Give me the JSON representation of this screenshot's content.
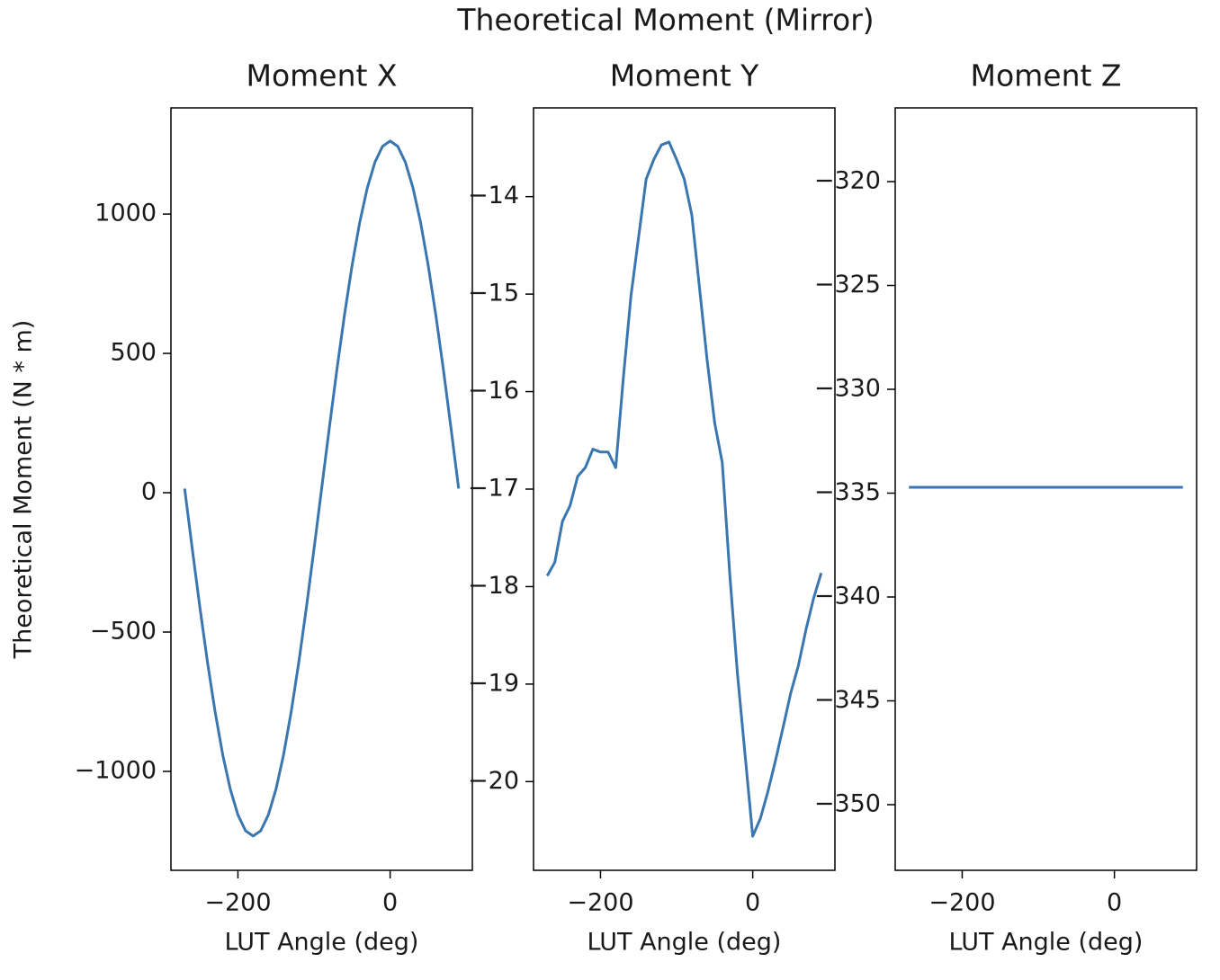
{
  "title": "Theoretical Moment (Mirror)",
  "chart_data": [
    {
      "type": "line",
      "title": "Moment X",
      "xlabel": "LUT Angle (deg)",
      "ylabel": "Theoretical Moment (N * m)",
      "xlim": [
        -288,
        108
      ],
      "ylim": [
        -1355,
        1381
      ],
      "xticks": [
        {
          "value": -200,
          "label": "−200"
        },
        0
      ],
      "yticks": [
        {
          "value": -1000,
          "label": "−1000"
        },
        {
          "value": -500,
          "label": "−500"
        },
        0,
        500,
        1000
      ],
      "x": [
        -270,
        -260,
        -250,
        -240,
        -230,
        -220,
        -210,
        -200,
        -190,
        -180,
        -170,
        -160,
        -150,
        -140,
        -130,
        -120,
        -110,
        -100,
        -90,
        -80,
        -70,
        -60,
        -50,
        -40,
        -30,
        -20,
        -10,
        0,
        10,
        20,
        30,
        40,
        50,
        60,
        70,
        80,
        90
      ],
      "series": [
        {
          "color": "#3a76af",
          "values": [
            15,
            -201,
            -411,
            -608,
            -786,
            -940,
            -1064,
            -1156,
            -1213,
            -1232,
            -1213,
            -1156,
            -1064,
            -940,
            -786,
            -608,
            -411,
            -201,
            15,
            231,
            441,
            638,
            816,
            970,
            1094,
            1186,
            1243,
            1262,
            1243,
            1186,
            1094,
            970,
            816,
            638,
            441,
            231,
            15
          ]
        }
      ]
    },
    {
      "type": "line",
      "title": "Moment Y",
      "xlabel": "LUT Angle (deg)",
      "xlim": [
        -288,
        108
      ],
      "ylim": [
        -20.91,
        -13.09
      ],
      "xticks": [
        {
          "value": -200,
          "label": "−200"
        },
        0
      ],
      "yticks": [
        {
          "value": -20,
          "label": "−20"
        },
        {
          "value": -19,
          "label": "−19"
        },
        {
          "value": -18,
          "label": "−18"
        },
        {
          "value": -17,
          "label": "−17"
        },
        {
          "value": -16,
          "label": "−16"
        },
        {
          "value": -15,
          "label": "−15"
        },
        {
          "value": -14,
          "label": "−14"
        }
      ],
      "x": [
        -270,
        -260,
        -250,
        -240,
        -230,
        -220,
        -210,
        -200,
        -190,
        -180,
        -170,
        -160,
        -150,
        -140,
        -130,
        -120,
        -110,
        -100,
        -90,
        -80,
        -70,
        -60,
        -50,
        -40,
        -30,
        -20,
        -10,
        0,
        10,
        20,
        30,
        40,
        50,
        60,
        70,
        80,
        90
      ],
      "series": [
        {
          "color": "#3a76af",
          "values": [
            -17.89,
            -17.75,
            -17.33,
            -17.17,
            -16.87,
            -16.78,
            -16.59,
            -16.62,
            -16.62,
            -16.78,
            -15.86,
            -15.02,
            -14.42,
            -13.82,
            -13.62,
            -13.47,
            -13.44,
            -13.62,
            -13.82,
            -14.19,
            -14.93,
            -15.67,
            -16.32,
            -16.73,
            -17.89,
            -18.9,
            -19.73,
            -20.56,
            -20.38,
            -20.1,
            -19.78,
            -19.44,
            -19.09,
            -18.81,
            -18.44,
            -18.12,
            -17.86
          ]
        }
      ]
    },
    {
      "type": "line",
      "title": "Moment Z",
      "xlabel": "LUT Angle (deg)",
      "xlim": [
        -288,
        108
      ],
      "ylim": [
        -353.16,
        -316.45
      ],
      "xticks": [
        {
          "value": -200,
          "label": "−200"
        },
        0
      ],
      "yticks": [
        {
          "value": -350,
          "label": "−350"
        },
        {
          "value": -345,
          "label": "−345"
        },
        {
          "value": -340,
          "label": "−340"
        },
        {
          "value": -335,
          "label": "−335"
        },
        {
          "value": -330,
          "label": "−330"
        },
        {
          "value": -325,
          "label": "−325"
        },
        {
          "value": -320,
          "label": "−320"
        }
      ],
      "x": [
        -270,
        90
      ],
      "series": [
        {
          "color": "#3a76af",
          "values": [
            -334.72,
            -334.72
          ]
        }
      ]
    }
  ]
}
